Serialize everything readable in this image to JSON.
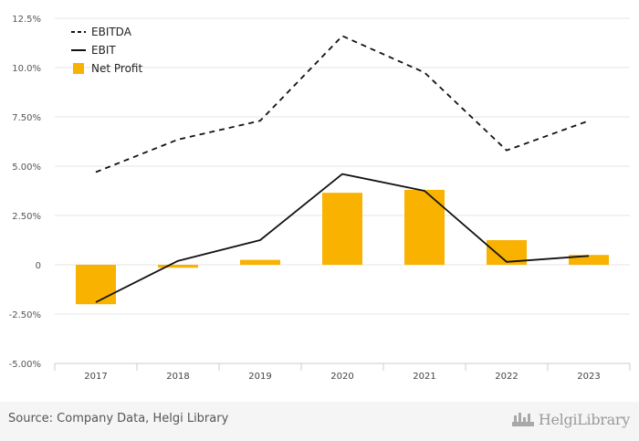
{
  "chart_data": {
    "type": "bar+line",
    "categories": [
      "2017",
      "2018",
      "2019",
      "2020",
      "2021",
      "2022",
      "2023"
    ],
    "series": [
      {
        "name": "EBITDA",
        "kind": "line",
        "style": "dashed",
        "color": "#111111",
        "values": [
          4.7,
          6.35,
          7.3,
          11.6,
          9.75,
          5.8,
          7.3
        ]
      },
      {
        "name": "EBIT",
        "kind": "line",
        "style": "solid",
        "color": "#111111",
        "values": [
          -1.9,
          0.2,
          1.25,
          4.6,
          3.75,
          0.15,
          0.45
        ]
      },
      {
        "name": "Net Profit",
        "kind": "bar",
        "color": "#f9b200",
        "values": [
          -2.0,
          -0.15,
          0.25,
          3.65,
          3.8,
          1.25,
          0.5
        ]
      }
    ],
    "ylim": [
      -5,
      12.5
    ],
    "yticks": [
      12.5,
      10.0,
      7.5,
      5.0,
      2.5,
      0,
      -2.5,
      -5.0
    ],
    "ytick_labels": [
      "12.5%",
      "10.0%",
      "7.50%",
      "5.00%",
      "2.50%",
      "0",
      "-2.50%",
      "-5.00%"
    ],
    "legend": [
      "EBITDA",
      "EBIT",
      "Net Profit"
    ],
    "legend_position": "top-left",
    "grid": true
  },
  "footer": {
    "source": "Source: Company Data, Helgi Library",
    "brand": "HelgiLibrary"
  },
  "colors": {
    "bar": "#f9b200",
    "line": "#111111",
    "grid": "#e6e6e6",
    "footer_bg": "#f5f5f5"
  }
}
